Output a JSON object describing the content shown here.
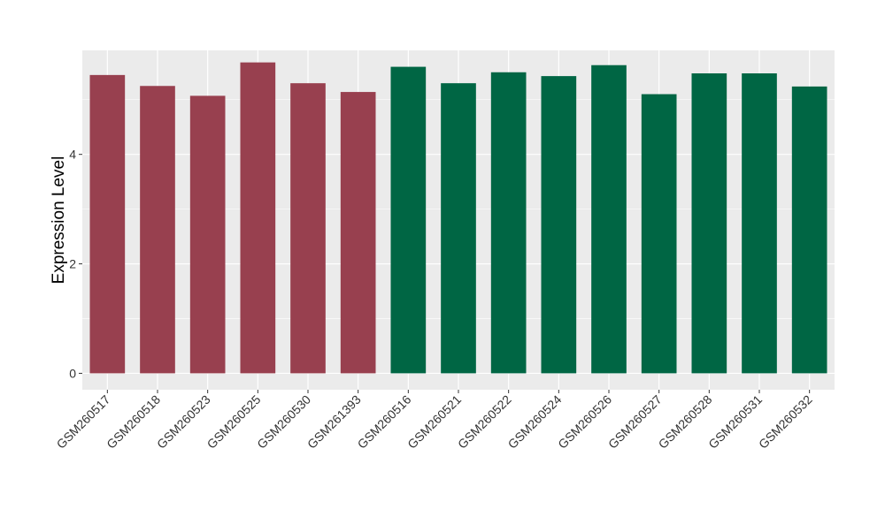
{
  "chart_data": {
    "type": "bar",
    "ylabel": "Expression Level",
    "xlabel": "",
    "ylim": [
      -0.3,
      5.9
    ],
    "yticks": [
      0,
      2,
      4
    ],
    "grid": true,
    "background": "#ebebeb",
    "categories": [
      "GSM260517",
      "GSM260518",
      "GSM260523",
      "GSM260525",
      "GSM260530",
      "GSM261393",
      "GSM260516",
      "GSM260521",
      "GSM260522",
      "GSM260524",
      "GSM260526",
      "GSM260527",
      "GSM260528",
      "GSM260531",
      "GSM260532"
    ],
    "values": [
      5.45,
      5.25,
      5.07,
      5.68,
      5.3,
      5.14,
      5.6,
      5.3,
      5.5,
      5.43,
      5.63,
      5.1,
      5.48,
      5.48,
      5.24
    ],
    "group_colors": [
      "#98404f",
      "#98404f",
      "#98404f",
      "#98404f",
      "#98404f",
      "#98404f",
      "#006644",
      "#006644",
      "#006644",
      "#006644",
      "#006644",
      "#006644",
      "#006644",
      "#006644",
      "#006644"
    ]
  }
}
